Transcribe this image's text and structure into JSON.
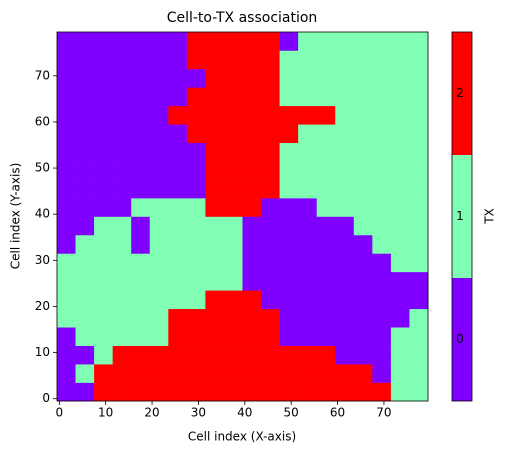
{
  "chart_data": {
    "type": "heatmap",
    "title": "Cell-to-TX association",
    "xlabel": "Cell index (X-axis)",
    "ylabel": "Cell index (Y-axis)",
    "xlim": [
      -0.5,
      79.5
    ],
    "ylim": [
      -0.5,
      79.5
    ],
    "xticks": [
      0,
      10,
      20,
      30,
      40,
      50,
      60,
      70
    ],
    "yticks": [
      0,
      10,
      20,
      30,
      40,
      50,
      60,
      70
    ],
    "xbins": [
      -0.5,
      3.5,
      7.5,
      11.5,
      15.5,
      19.5,
      23.5,
      27.5,
      31.5,
      35.5,
      39.5,
      43.5,
      47.5,
      51.5,
      55.5,
      59.5,
      63.5,
      67.5,
      71.5,
      75.5,
      79.5
    ],
    "ybins": [
      -0.5,
      3.5,
      7.5,
      11.5,
      15.5,
      19.5,
      23.5,
      27.5,
      31.5,
      35.5,
      39.5,
      43.5,
      47.5,
      51.5,
      55.5,
      59.5,
      63.5,
      67.5,
      71.5,
      75.5,
      79.5
    ],
    "z": [
      [
        0,
        0,
        2,
        2,
        2,
        2,
        2,
        2,
        2,
        2,
        2,
        2,
        2,
        2,
        2,
        2,
        2,
        2,
        1,
        1
      ],
      [
        0,
        1,
        2,
        2,
        2,
        2,
        2,
        2,
        2,
        2,
        2,
        2,
        2,
        2,
        2,
        2,
        2,
        0,
        1,
        1
      ],
      [
        0,
        0,
        1,
        2,
        2,
        2,
        2,
        2,
        2,
        2,
        2,
        2,
        2,
        2,
        2,
        0,
        0,
        0,
        1,
        1
      ],
      [
        0,
        1,
        1,
        1,
        1,
        1,
        2,
        2,
        2,
        2,
        2,
        2,
        0,
        0,
        0,
        0,
        0,
        0,
        1,
        1
      ],
      [
        1,
        1,
        1,
        1,
        1,
        1,
        2,
        2,
        2,
        2,
        2,
        2,
        0,
        0,
        0,
        0,
        0,
        0,
        0,
        1
      ],
      [
        1,
        1,
        1,
        1,
        1,
        1,
        1,
        1,
        2,
        2,
        2,
        0,
        0,
        0,
        0,
        0,
        0,
        0,
        0,
        0
      ],
      [
        1,
        1,
        1,
        1,
        1,
        1,
        1,
        1,
        1,
        1,
        0,
        0,
        0,
        0,
        0,
        0,
        0,
        0,
        0,
        0
      ],
      [
        1,
        1,
        1,
        1,
        1,
        1,
        1,
        1,
        1,
        1,
        0,
        0,
        0,
        0,
        0,
        0,
        0,
        0,
        1,
        1
      ],
      [
        0,
        1,
        1,
        1,
        0,
        1,
        1,
        1,
        1,
        1,
        0,
        0,
        0,
        0,
        0,
        0,
        0,
        1,
        1,
        1
      ],
      [
        0,
        0,
        1,
        1,
        0,
        1,
        1,
        1,
        1,
        1,
        0,
        0,
        0,
        0,
        0,
        0,
        1,
        1,
        1,
        1
      ],
      [
        0,
        0,
        0,
        0,
        1,
        1,
        1,
        1,
        2,
        2,
        2,
        0,
        0,
        0,
        1,
        1,
        1,
        1,
        1,
        1
      ],
      [
        0,
        0,
        0,
        0,
        0,
        0,
        0,
        0,
        2,
        2,
        2,
        2,
        1,
        1,
        1,
        1,
        1,
        1,
        1,
        1
      ],
      [
        0,
        0,
        0,
        0,
        0,
        0,
        0,
        0,
        2,
        2,
        2,
        2,
        1,
        1,
        1,
        1,
        1,
        1,
        1,
        1
      ],
      [
        0,
        0,
        0,
        0,
        0,
        0,
        0,
        0,
        2,
        2,
        2,
        2,
        1,
        1,
        1,
        1,
        1,
        1,
        1,
        1
      ],
      [
        0,
        0,
        0,
        0,
        0,
        0,
        0,
        2,
        2,
        2,
        2,
        2,
        2,
        1,
        1,
        1,
        1,
        1,
        1,
        1
      ],
      [
        0,
        0,
        0,
        0,
        0,
        0,
        2,
        2,
        2,
        2,
        2,
        2,
        2,
        2,
        2,
        1,
        1,
        1,
        1,
        1
      ],
      [
        0,
        0,
        0,
        0,
        0,
        0,
        0,
        2,
        2,
        2,
        2,
        2,
        1,
        1,
        1,
        1,
        1,
        1,
        1,
        1
      ],
      [
        0,
        0,
        0,
        0,
        0,
        0,
        0,
        0,
        2,
        2,
        2,
        2,
        1,
        1,
        1,
        1,
        1,
        1,
        1,
        1
      ],
      [
        0,
        0,
        0,
        0,
        0,
        0,
        0,
        2,
        2,
        2,
        2,
        2,
        1,
        1,
        1,
        1,
        1,
        1,
        1,
        1
      ],
      [
        0,
        0,
        0,
        0,
        0,
        0,
        0,
        2,
        2,
        2,
        2,
        2,
        0,
        1,
        1,
        1,
        1,
        1,
        1,
        1
      ]
    ],
    "colorbar": {
      "label": "TX",
      "lim": [
        -0.5,
        2.5
      ],
      "ticks": [
        0,
        1,
        2
      ],
      "colors": [
        "#8000ff",
        "#80ffb4",
        "#ff0000"
      ]
    }
  }
}
